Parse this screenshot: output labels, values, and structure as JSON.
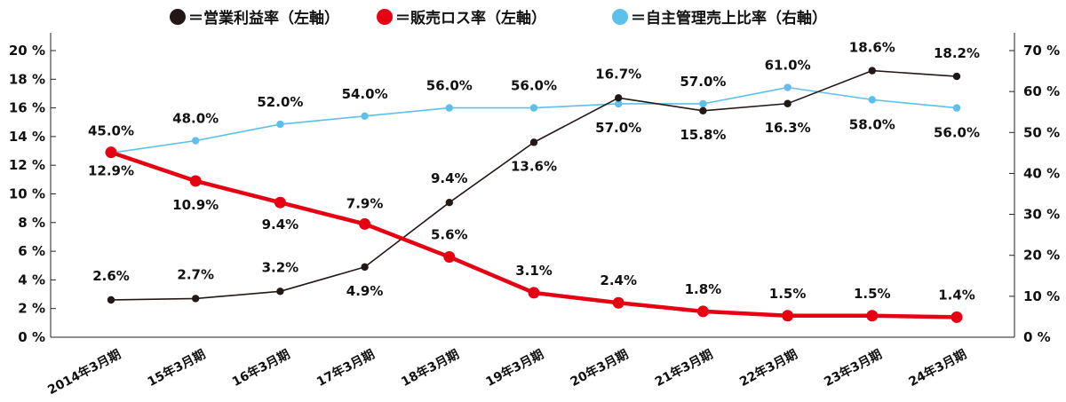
{
  "chart_data": {
    "type": "line",
    "categories": [
      "2014年3月期",
      "15年3月期",
      "16年3月期",
      "17年3月期",
      "18年3月期",
      "19年3月期",
      "20年3月期",
      "21年3月期",
      "22年3月期",
      "23年3月期",
      "24年3月期"
    ],
    "y_left": {
      "ylim": [
        0,
        20
      ],
      "ticks": [
        0,
        2,
        4,
        6,
        8,
        10,
        12,
        14,
        16,
        18,
        20
      ],
      "unit": "%"
    },
    "y_right": {
      "ylim": [
        0,
        70
      ],
      "ticks": [
        0,
        10,
        20,
        30,
        40,
        50,
        60,
        70
      ],
      "unit": "%"
    },
    "legend_position": "top",
    "grid": false,
    "series": [
      {
        "name": "＝営業利益率（左軸）",
        "axis": "left",
        "color": "#231815",
        "values": [
          2.6,
          2.7,
          3.2,
          4.9,
          9.4,
          13.6,
          16.7,
          15.8,
          16.3,
          18.6,
          18.2
        ],
        "labels": [
          "2.6%",
          "2.7%",
          "3.2%",
          "4.9%",
          "9.4%",
          "13.6%",
          "16.7%",
          "15.8%",
          "16.3%",
          "18.6%",
          "18.2%"
        ]
      },
      {
        "name": "＝販売ロス率（左軸）",
        "axis": "left",
        "color": "#e60012",
        "values": [
          12.9,
          10.9,
          9.4,
          7.9,
          5.6,
          3.1,
          2.4,
          1.8,
          1.5,
          1.5,
          1.4
        ],
        "labels": [
          "12.9%",
          "10.9%",
          "9.4%",
          "7.9%",
          "5.6%",
          "3.1%",
          "2.4%",
          "1.8%",
          "1.5%",
          "1.5%",
          "1.4%"
        ]
      },
      {
        "name": "＝自主管理売上比率（右軸）",
        "axis": "right",
        "color": "#5bc0eb",
        "values": [
          45.0,
          48.0,
          52.0,
          54.0,
          56.0,
          56.0,
          57.0,
          57.0,
          61.0,
          58.0,
          56.0
        ],
        "labels": [
          "45.0%",
          "48.0%",
          "52.0%",
          "54.0%",
          "56.0%",
          "56.0%",
          "57.0%",
          "57.0%",
          "61.0%",
          "58.0%",
          "56.0%"
        ]
      }
    ]
  }
}
